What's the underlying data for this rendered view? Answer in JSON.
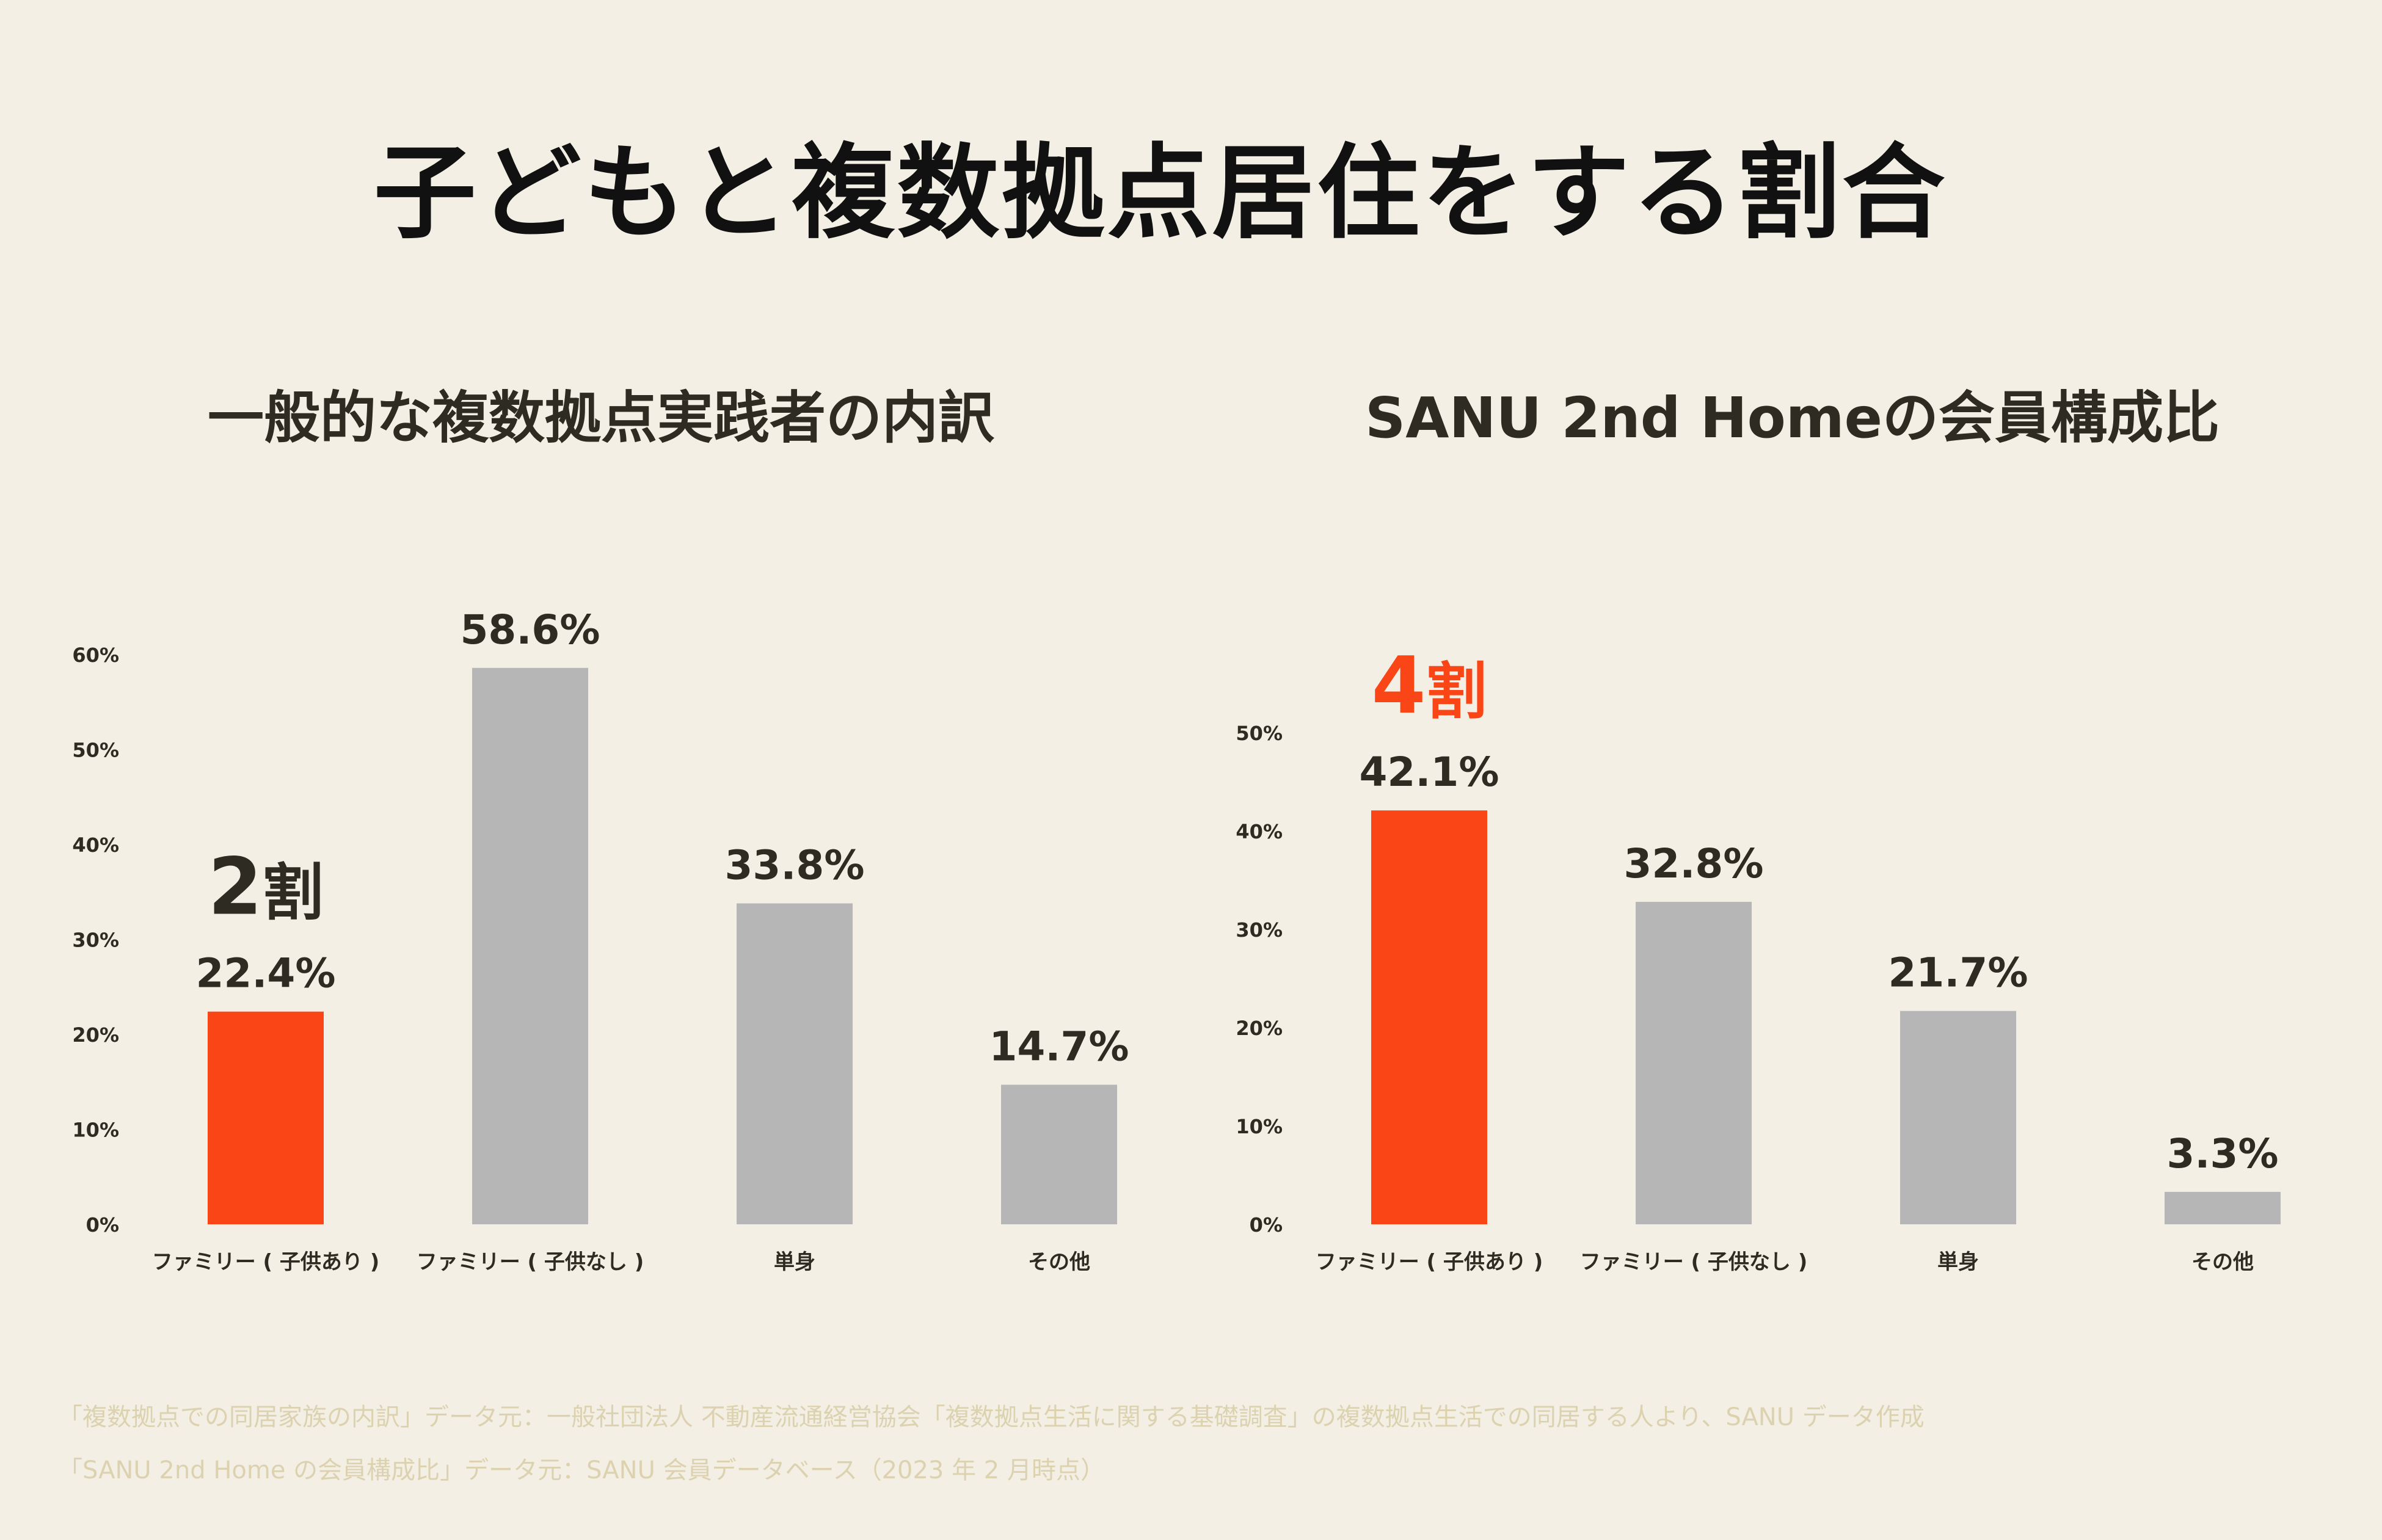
{
  "title": "子どもと複数拠点居住をする割合",
  "chart_data": [
    {
      "type": "bar",
      "title": "一般的な複数拠点実践者の内訳",
      "categories": [
        "ファミリー ( 子供あり )",
        "ファミリー ( 子供なし )",
        "単身",
        "その他"
      ],
      "values": [
        22.4,
        58.6,
        33.8,
        14.7
      ],
      "value_labels": [
        "22.4%",
        "58.6%",
        "33.8%",
        "14.7%"
      ],
      "ylim": [
        0,
        60
      ],
      "yticks": [
        "0%",
        "10%",
        "20%",
        "30%",
        "40%",
        "50%",
        "60%"
      ],
      "highlight_index": 0,
      "annotation": {
        "number": "2",
        "unit": "割"
      },
      "grid": false,
      "legend": "none"
    },
    {
      "type": "bar",
      "title": "SANU 2nd Homeの会員構成比",
      "categories": [
        "ファミリー ( 子供あり )",
        "ファミリー ( 子供なし )",
        "単身",
        "その他"
      ],
      "values": [
        42.1,
        32.8,
        21.7,
        3.3
      ],
      "value_labels": [
        "42.1%",
        "32.8%",
        "21.7%",
        "3.3%"
      ],
      "ylim": [
        0,
        50
      ],
      "yticks": [
        "0%",
        "10%",
        "20%",
        "30%",
        "40%",
        "50%"
      ],
      "highlight_index": 0,
      "annotation": {
        "number": "4",
        "unit": "割"
      },
      "grid": false,
      "legend": "none"
    }
  ],
  "colors": {
    "highlight": "#fa4616",
    "bar": "#b6b6b6",
    "text": "#2e2b22",
    "background": "#f3efe4",
    "footnote": "#dcd2b0"
  },
  "footnotes": [
    "「複数拠点での同居家族の内訳」データ元：一般社団法人 不動産流通経営協会「複数拠点生活に関する基礎調査」の複数拠点生活での同居する人より、SANU データ作成",
    "「SANU 2nd Home の会員構成比」データ元：SANU 会員データベース（2023 年 2 月時点）"
  ]
}
